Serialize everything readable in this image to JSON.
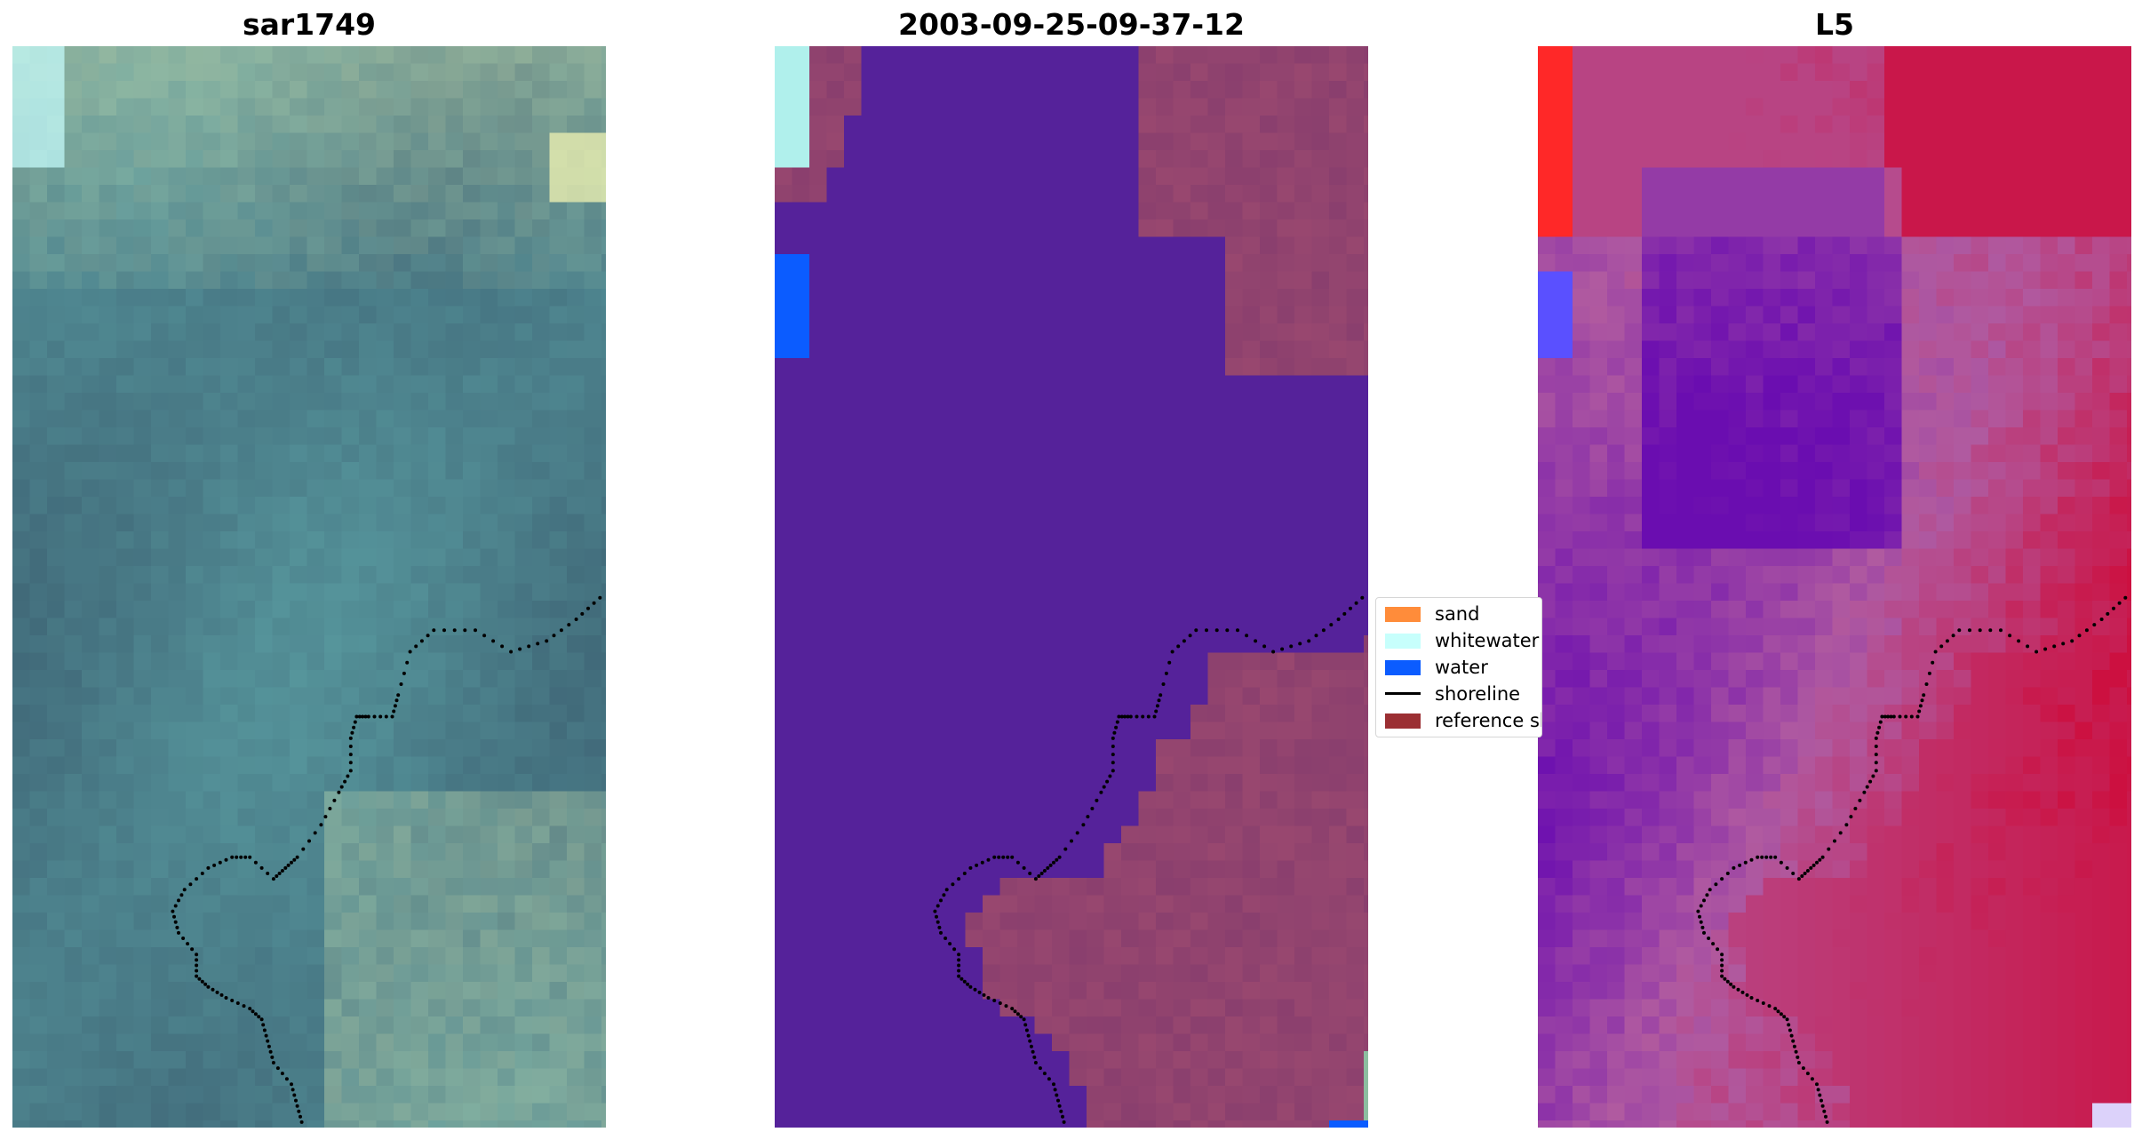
{
  "figure": {
    "panels": [
      {
        "title": "sar1749",
        "kind": "rgb"
      },
      {
        "title": "2003-09-25-09-37-12",
        "kind": "classified"
      },
      {
        "title": "L5",
        "kind": "index"
      }
    ],
    "legend": {
      "items": [
        {
          "label": "sand",
          "color": "#ff8c3a",
          "type": "patch"
        },
        {
          "label": "whitewater",
          "color": "#c7fffc",
          "type": "patch"
        },
        {
          "label": "water",
          "color": "#0b5cff",
          "type": "patch"
        },
        {
          "label": "shoreline",
          "color": "#000000",
          "type": "line"
        },
        {
          "label": "reference shoreline buffer",
          "color": "#9b2f33",
          "type": "patch"
        }
      ]
    },
    "colors": {
      "classified_land": "#55229a",
      "classified_buffer": "#8a3f6e",
      "index_low": "#6a0db0",
      "index_high": "#cc1040"
    }
  }
}
